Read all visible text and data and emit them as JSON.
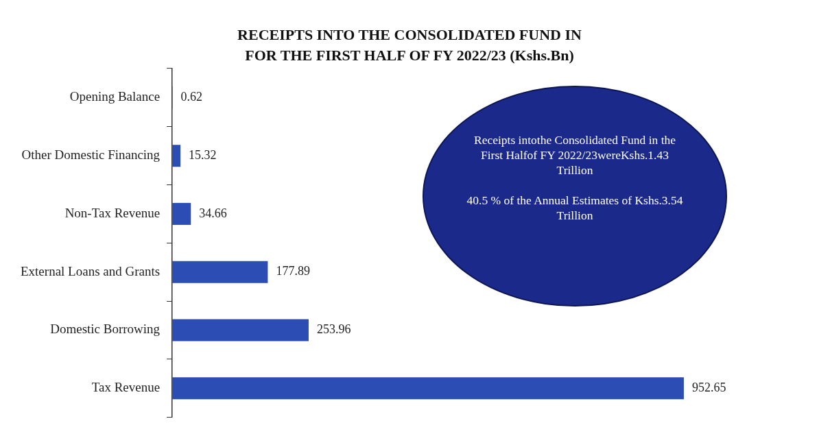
{
  "chart_data": {
    "type": "bar",
    "orientation": "horizontal",
    "title": "RECEIPTS INTO THE CONSOLIDATED FUND IN\nFOR THE FIRST HALF OF FY 2022/23 (Kshs.Bn)",
    "categories": [
      "Opening Balance",
      "Other Domestic Financing",
      "Non-Tax Revenue",
      "External Loans and Grants",
      "Domestic Borrowing",
      "Tax Revenue"
    ],
    "values": [
      0.62,
      15.32,
      34.66,
      177.89,
      253.96,
      952.65
    ],
    "color": "#2b4db4",
    "data_labels": true,
    "tick_labels": "y",
    "grid": false,
    "legend": false,
    "annotations": [
      "Receipts intothe Consolidated Fund  in the First Halfof FY 2022/23wereKshs.1.43 Trillion",
      "40.5 % of the Annual Estimates of Kshs.3.54 Trillion"
    ]
  }
}
